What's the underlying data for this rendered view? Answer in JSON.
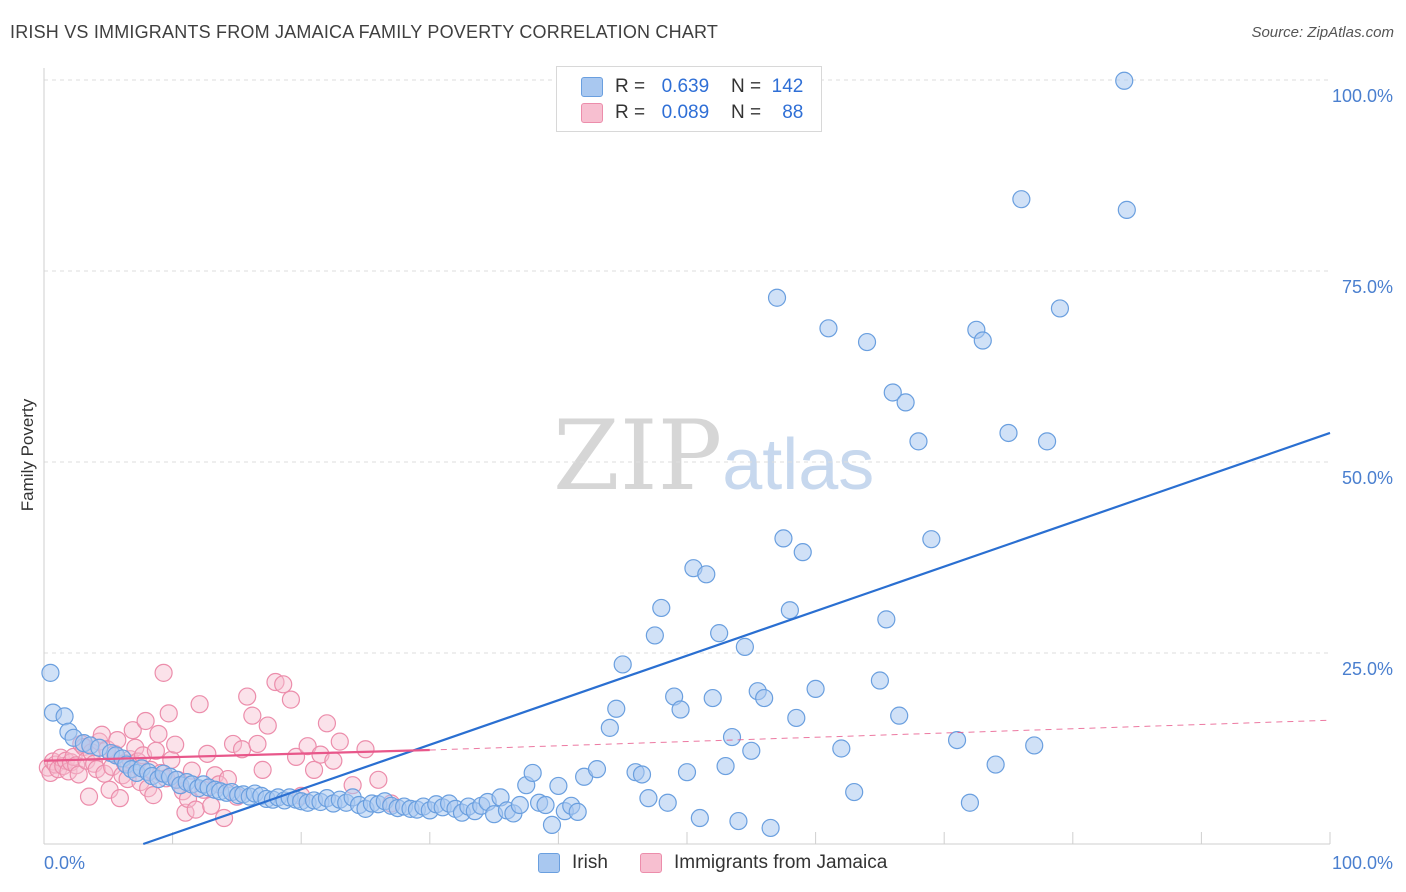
{
  "header": {
    "title": "IRISH VS IMMIGRANTS FROM JAMAICA FAMILY POVERTY CORRELATION CHART",
    "source": "Source: ZipAtlas.com"
  },
  "watermark": {
    "zip": "ZIP",
    "atlas": "atlas"
  },
  "legend": {
    "irish": {
      "r_label": "R =",
      "r_value": "0.639",
      "n_label": "N =",
      "n_value": "142"
    },
    "jamaica": {
      "r_label": "R =",
      "r_value": "0.089",
      "n_label": "N =",
      "n_value": "88"
    }
  },
  "bottom_legend": {
    "irish": "Irish",
    "jamaica": "Immigrants from Jamaica"
  },
  "colors": {
    "irish_fill": "#a9c8f0",
    "irish_stroke": "#6a9fdf",
    "irish_line": "#2a6fd1",
    "jamaica_fill": "#f7bfd0",
    "jamaica_stroke": "#ec8dab",
    "jamaica_line": "#e8578a",
    "grid": "#dedede",
    "tick": "#4a7fcf"
  },
  "chart_data": {
    "type": "scatter",
    "title": "IRISH VS IMMIGRANTS FROM JAMAICA FAMILY POVERTY CORRELATION CHART",
    "xlabel": "",
    "ylabel": "Family Poverty",
    "x_ticks": [
      "0.0%",
      "100.0%"
    ],
    "y_ticks": [
      "25.0%",
      "50.0%",
      "75.0%",
      "100.0%"
    ],
    "xlim": [
      0,
      100
    ],
    "ylim": [
      0,
      100
    ],
    "legend_position": "top-center",
    "series": [
      {
        "name": "Irish",
        "points": [
          [
            0.5,
            22.4
          ],
          [
            0.7,
            17.2
          ],
          [
            1.6,
            16.7
          ],
          [
            1.9,
            14.7
          ],
          [
            2.3,
            13.9
          ],
          [
            3.1,
            13.2
          ],
          [
            3.6,
            12.9
          ],
          [
            4.3,
            12.6
          ],
          [
            5.2,
            11.9
          ],
          [
            5.6,
            11.6
          ],
          [
            6.1,
            11.2
          ],
          [
            6.4,
            10.4
          ],
          [
            6.8,
            9.8
          ],
          [
            7.2,
            9.3
          ],
          [
            7.6,
            9.9
          ],
          [
            8.1,
            9.4
          ],
          [
            8.4,
            8.9
          ],
          [
            8.9,
            8.5
          ],
          [
            9.3,
            9.2
          ],
          [
            9.8,
            8.8
          ],
          [
            10.3,
            8.4
          ],
          [
            10.6,
            7.7
          ],
          [
            11.1,
            8.1
          ],
          [
            11.5,
            7.8
          ],
          [
            12.0,
            7.3
          ],
          [
            12.4,
            7.8
          ],
          [
            12.8,
            7.4
          ],
          [
            13.3,
            7.1
          ],
          [
            13.7,
            6.9
          ],
          [
            14.2,
            6.7
          ],
          [
            14.6,
            6.8
          ],
          [
            15.1,
            6.4
          ],
          [
            15.5,
            6.5
          ],
          [
            16.0,
            6.2
          ],
          [
            16.4,
            6.6
          ],
          [
            16.9,
            6.3
          ],
          [
            17.3,
            5.9
          ],
          [
            17.8,
            5.8
          ],
          [
            18.2,
            6.1
          ],
          [
            18.7,
            5.7
          ],
          [
            19.1,
            6.1
          ],
          [
            19.6,
            5.8
          ],
          [
            20.0,
            5.6
          ],
          [
            20.5,
            5.4
          ],
          [
            21.0,
            5.7
          ],
          [
            21.5,
            5.5
          ],
          [
            22.0,
            6.0
          ],
          [
            22.5,
            5.3
          ],
          [
            23.0,
            5.8
          ],
          [
            23.5,
            5.4
          ],
          [
            24.0,
            6.1
          ],
          [
            24.5,
            5.1
          ],
          [
            25.0,
            4.6
          ],
          [
            25.5,
            5.3
          ],
          [
            26.0,
            5.2
          ],
          [
            26.5,
            5.6
          ],
          [
            27.0,
            5.0
          ],
          [
            27.5,
            4.7
          ],
          [
            28.0,
            4.9
          ],
          [
            28.5,
            4.6
          ],
          [
            29.0,
            4.5
          ],
          [
            29.5,
            4.9
          ],
          [
            30.0,
            4.4
          ],
          [
            30.5,
            5.2
          ],
          [
            31.0,
            4.8
          ],
          [
            31.5,
            5.3
          ],
          [
            32.0,
            4.6
          ],
          [
            32.5,
            4.1
          ],
          [
            33.0,
            4.9
          ],
          [
            33.5,
            4.3
          ],
          [
            34.0,
            5.0
          ],
          [
            34.5,
            5.5
          ],
          [
            35.0,
            3.9
          ],
          [
            35.5,
            6.1
          ],
          [
            36.0,
            4.4
          ],
          [
            36.5,
            4.0
          ],
          [
            37.0,
            5.1
          ],
          [
            37.5,
            7.7
          ],
          [
            38.0,
            9.3
          ],
          [
            38.5,
            5.4
          ],
          [
            39.0,
            5.1
          ],
          [
            39.5,
            2.5
          ],
          [
            40.0,
            7.6
          ],
          [
            40.5,
            4.3
          ],
          [
            41.0,
            5.0
          ],
          [
            41.5,
            4.2
          ],
          [
            42.0,
            8.8
          ],
          [
            43.0,
            9.8
          ],
          [
            44.0,
            15.2
          ],
          [
            44.5,
            17.7
          ],
          [
            45.0,
            23.5
          ],
          [
            46.0,
            9.4
          ],
          [
            46.5,
            9.1
          ],
          [
            47.0,
            6.0
          ],
          [
            47.5,
            27.3
          ],
          [
            48.0,
            30.9
          ],
          [
            48.5,
            5.4
          ],
          [
            49.0,
            19.3
          ],
          [
            49.5,
            17.6
          ],
          [
            50.0,
            9.4
          ],
          [
            50.5,
            36.1
          ],
          [
            51.0,
            3.4
          ],
          [
            51.5,
            35.3
          ],
          [
            52.0,
            19.1
          ],
          [
            52.5,
            27.6
          ],
          [
            53.0,
            10.2
          ],
          [
            53.5,
            14.0
          ],
          [
            54.0,
            3.0
          ],
          [
            54.5,
            25.8
          ],
          [
            55.0,
            12.2
          ],
          [
            55.5,
            20.0
          ],
          [
            56.0,
            19.1
          ],
          [
            56.5,
            2.1
          ],
          [
            57.0,
            71.5
          ],
          [
            57.5,
            40.0
          ],
          [
            58.0,
            30.6
          ],
          [
            58.5,
            16.5
          ],
          [
            59.0,
            38.2
          ],
          [
            60.0,
            20.3
          ],
          [
            61.0,
            67.5
          ],
          [
            62.0,
            12.5
          ],
          [
            63.0,
            6.8
          ],
          [
            64.0,
            65.7
          ],
          [
            65.0,
            21.4
          ],
          [
            65.5,
            29.4
          ],
          [
            66.0,
            59.1
          ],
          [
            66.5,
            16.8
          ],
          [
            67.0,
            57.8
          ],
          [
            68.0,
            52.7
          ],
          [
            69.0,
            39.9
          ],
          [
            71.0,
            13.6
          ],
          [
            72.0,
            5.4
          ],
          [
            72.5,
            67.3
          ],
          [
            73.0,
            65.9
          ],
          [
            74.0,
            10.4
          ],
          [
            75.0,
            53.8
          ],
          [
            76.0,
            84.4
          ],
          [
            77.0,
            12.9
          ],
          [
            78.0,
            52.7
          ],
          [
            79.0,
            70.1
          ],
          [
            84.0,
            99.9
          ],
          [
            84.2,
            83.0
          ]
        ]
      },
      {
        "name": "Immigrants from Jamaica",
        "points": [
          [
            0.3,
            10.0
          ],
          [
            0.5,
            9.3
          ],
          [
            0.7,
            10.8
          ],
          [
            0.9,
            10.4
          ],
          [
            1.1,
            9.8
          ],
          [
            1.3,
            11.3
          ],
          [
            1.5,
            10.2
          ],
          [
            1.7,
            10.9
          ],
          [
            1.9,
            9.5
          ],
          [
            2.1,
            10.7
          ],
          [
            2.3,
            11.4
          ],
          [
            2.5,
            10.3
          ],
          [
            2.7,
            9.1
          ],
          [
            2.9,
            13.1
          ],
          [
            3.1,
            12.7
          ],
          [
            3.3,
            10.9
          ],
          [
            3.5,
            6.2
          ],
          [
            3.7,
            12.0
          ],
          [
            3.9,
            10.5
          ],
          [
            4.1,
            9.8
          ],
          [
            4.3,
            13.4
          ],
          [
            4.5,
            14.3
          ],
          [
            4.7,
            9.2
          ],
          [
            4.9,
            12.4
          ],
          [
            5.1,
            7.1
          ],
          [
            5.3,
            10.1
          ],
          [
            5.5,
            11.8
          ],
          [
            5.7,
            13.6
          ],
          [
            5.9,
            6.0
          ],
          [
            6.1,
            9.0
          ],
          [
            6.3,
            10.6
          ],
          [
            6.5,
            8.5
          ],
          [
            6.7,
            11.1
          ],
          [
            6.9,
            14.9
          ],
          [
            7.1,
            12.6
          ],
          [
            7.3,
            10.8
          ],
          [
            7.5,
            8.1
          ],
          [
            7.7,
            11.6
          ],
          [
            7.9,
            16.1
          ],
          [
            8.1,
            7.3
          ],
          [
            8.3,
            9.7
          ],
          [
            8.5,
            6.4
          ],
          [
            8.7,
            12.2
          ],
          [
            8.9,
            14.4
          ],
          [
            9.1,
            9.3
          ],
          [
            9.3,
            22.4
          ],
          [
            9.5,
            8.6
          ],
          [
            9.7,
            17.1
          ],
          [
            9.9,
            11.0
          ],
          [
            10.2,
            13.0
          ],
          [
            10.4,
            8.4
          ],
          [
            10.6,
            7.7
          ],
          [
            10.8,
            6.9
          ],
          [
            11.0,
            4.1
          ],
          [
            11.2,
            5.9
          ],
          [
            11.5,
            9.6
          ],
          [
            11.8,
            4.5
          ],
          [
            12.1,
            18.3
          ],
          [
            12.4,
            7.1
          ],
          [
            12.7,
            11.8
          ],
          [
            13.0,
            5.0
          ],
          [
            13.3,
            9.0
          ],
          [
            13.6,
            7.8
          ],
          [
            14.0,
            3.4
          ],
          [
            14.3,
            8.5
          ],
          [
            14.7,
            13.1
          ],
          [
            15.0,
            6.2
          ],
          [
            15.4,
            12.4
          ],
          [
            15.8,
            19.3
          ],
          [
            16.2,
            16.8
          ],
          [
            16.6,
            13.1
          ],
          [
            17.0,
            9.7
          ],
          [
            17.4,
            15.5
          ],
          [
            18.0,
            21.2
          ],
          [
            18.6,
            20.9
          ],
          [
            19.2,
            18.9
          ],
          [
            19.6,
            11.4
          ],
          [
            20.0,
            6.3
          ],
          [
            20.5,
            12.8
          ],
          [
            21.0,
            9.7
          ],
          [
            21.5,
            11.7
          ],
          [
            22.0,
            15.8
          ],
          [
            22.5,
            10.9
          ],
          [
            23.0,
            13.4
          ],
          [
            24.0,
            7.7
          ],
          [
            25.0,
            12.4
          ],
          [
            26.0,
            8.4
          ],
          [
            27.0,
            5.3
          ]
        ]
      }
    ],
    "trend_lines": [
      {
        "series": "Irish",
        "from": [
          0,
          -4.5
        ],
        "to": [
          100,
          53.8
        ]
      },
      {
        "series": "Immigrants from Jamaica",
        "from": [
          0,
          10.9
        ],
        "to": [
          30,
          12.3
        ],
        "dashed_to": [
          100,
          16.2
        ]
      }
    ]
  }
}
